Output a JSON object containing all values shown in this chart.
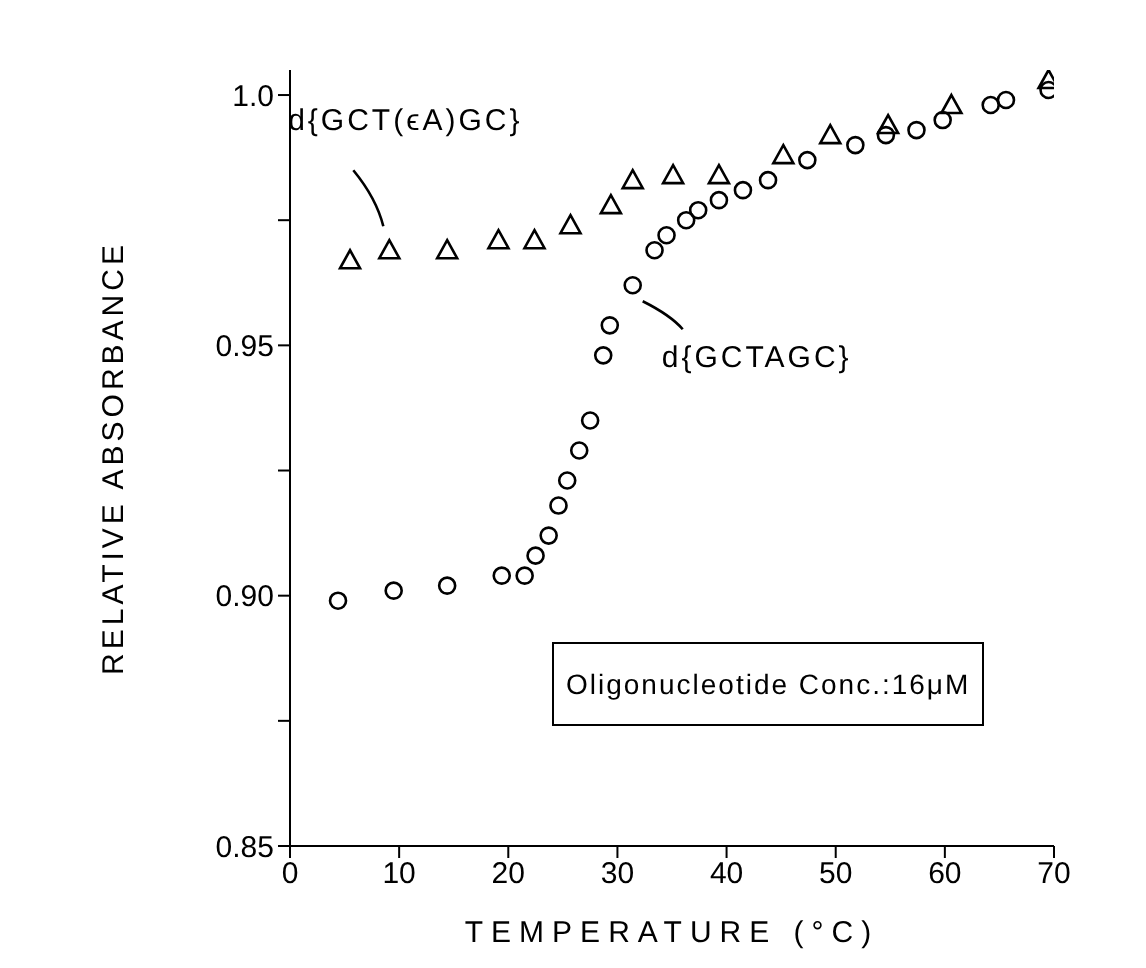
{
  "chart_data": {
    "type": "scatter",
    "xlabel": "TEMPERATURE (°C)",
    "ylabel": "RELATIVE ABSORBANCE",
    "xlim": [
      0,
      70
    ],
    "xticks": [
      0,
      10,
      20,
      30,
      40,
      50,
      60,
      70
    ],
    "ylim": [
      0.85,
      1.005
    ],
    "yticks": [
      0.85,
      {
        "value": 0.875,
        "label": null
      },
      {
        "value": 0.9,
        "label": "0.90"
      },
      {
        "value": 0.925,
        "label": null
      },
      0.95,
      {
        "value": 0.975,
        "label": null
      },
      {
        "value": 1.0,
        "label": "1.0"
      }
    ],
    "grid": false,
    "series": [
      {
        "name": "d{GCT(ϵA)GC}",
        "color": "#000000",
        "marker": "triangle",
        "x": [
          5.5,
          9.1,
          14.4,
          19.1,
          22.4,
          25.7,
          29.4,
          31.4,
          35.1,
          39.3,
          45.2,
          49.5,
          54.8,
          60.6,
          69.5
        ],
        "values": [
          0.967,
          0.969,
          0.969,
          0.971,
          0.971,
          0.974,
          0.978,
          0.983,
          0.984,
          0.984,
          0.988,
          0.992,
          0.994,
          0.998,
          1.003
        ]
      },
      {
        "name": "d{GCTAGC}",
        "color": "#000000",
        "marker": "circle",
        "x": [
          4.4,
          9.5,
          14.4,
          19.4,
          21.5,
          22.5,
          23.7,
          24.6,
          25.4,
          26.5,
          27.5,
          28.7,
          29.3,
          31.4,
          33.4,
          34.5,
          36.3,
          37.4,
          39.3,
          41.5,
          43.8,
          47.4,
          51.8,
          54.6,
          57.4,
          59.8,
          64.2,
          65.6,
          69.5
        ],
        "values": [
          0.899,
          0.901,
          0.902,
          0.904,
          0.904,
          0.908,
          0.912,
          0.918,
          0.923,
          0.929,
          0.935,
          0.948,
          0.954,
          0.962,
          0.969,
          0.972,
          0.975,
          0.977,
          0.979,
          0.981,
          0.983,
          0.987,
          0.99,
          0.992,
          0.993,
          0.995,
          0.998,
          0.999,
          1.001
        ]
      }
    ],
    "annotations": [
      "Oligonucleotide Conc.:16μM"
    ]
  }
}
